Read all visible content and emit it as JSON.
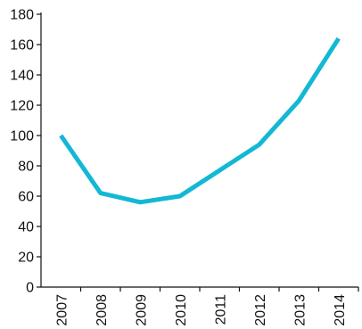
{
  "chart_data": {
    "type": "line",
    "title": "",
    "xlabel": "",
    "ylabel": "",
    "categories": [
      "2007",
      "2008",
      "2009",
      "2010",
      "2011",
      "2012",
      "2013",
      "2014"
    ],
    "series": [
      {
        "values": [
          100,
          62,
          56,
          60,
          77,
          94,
          123,
          164
        ]
      }
    ],
    "ylim": [
      0,
      180
    ],
    "yticks": [
      0,
      20,
      40,
      60,
      80,
      100,
      120,
      140,
      160,
      180
    ],
    "grid": false,
    "legend": "none",
    "colors": {
      "line": "#12b8d4",
      "axis": "#111111",
      "text": "#111111"
    }
  }
}
